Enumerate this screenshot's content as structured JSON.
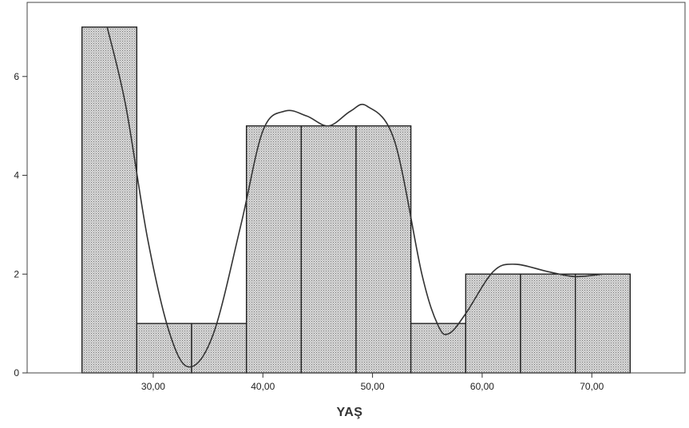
{
  "chart_data": {
    "type": "bar",
    "title": "",
    "xlabel": "YAŞ",
    "ylabel": "",
    "xlim": [
      18.5,
      78.5
    ],
    "ylim": [
      0,
      7.5
    ],
    "bin_width": 5,
    "bins": [
      {
        "x_start": 23.5,
        "x_end": 28.5,
        "count": 7
      },
      {
        "x_start": 28.5,
        "x_end": 33.5,
        "count": 1
      },
      {
        "x_start": 33.5,
        "x_end": 38.5,
        "count": 1
      },
      {
        "x_start": 38.5,
        "x_end": 43.5,
        "count": 5
      },
      {
        "x_start": 43.5,
        "x_end": 48.5,
        "count": 5
      },
      {
        "x_start": 48.5,
        "x_end": 53.5,
        "count": 5
      },
      {
        "x_start": 53.5,
        "x_end": 58.5,
        "count": 1
      },
      {
        "x_start": 58.5,
        "x_end": 63.5,
        "count": 2
      },
      {
        "x_start": 63.5,
        "x_end": 68.5,
        "count": 2
      },
      {
        "x_start": 68.5,
        "x_end": 73.5,
        "count": 2
      }
    ],
    "x_ticks": [
      {
        "value": 30,
        "label": "30,00"
      },
      {
        "value": 40,
        "label": "40,00"
      },
      {
        "value": 50,
        "label": "50,00"
      },
      {
        "value": 60,
        "label": "60,00"
      },
      {
        "value": 70,
        "label": "70,00"
      }
    ],
    "y_ticks": [
      {
        "value": 0,
        "label": "0"
      },
      {
        "value": 2,
        "label": "2"
      },
      {
        "value": 4,
        "label": "4"
      },
      {
        "value": 6,
        "label": "6"
      }
    ],
    "density_curve": {
      "x": [
        25.8,
        27.5,
        29.5,
        31.5,
        33.3,
        35.5,
        38.0,
        40.0,
        42.0,
        44.0,
        46.0,
        48.0,
        49.5,
        52.0,
        54.5,
        56.0,
        57.0,
        58.5,
        61.0,
        63.0,
        66.0,
        68.5,
        71.0
      ],
      "y": [
        7.0,
        5.4,
        2.7,
        0.8,
        0.12,
        0.8,
        3.0,
        4.9,
        5.3,
        5.2,
        5.0,
        5.3,
        5.4,
        4.7,
        2.0,
        0.95,
        0.8,
        1.2,
        2.05,
        2.2,
        2.05,
        1.95,
        2.0
      ]
    },
    "bar_fill": "#cccccc",
    "bar_stroke": "#222222",
    "curve_color": "#333333",
    "grid": false,
    "legend": "none"
  }
}
